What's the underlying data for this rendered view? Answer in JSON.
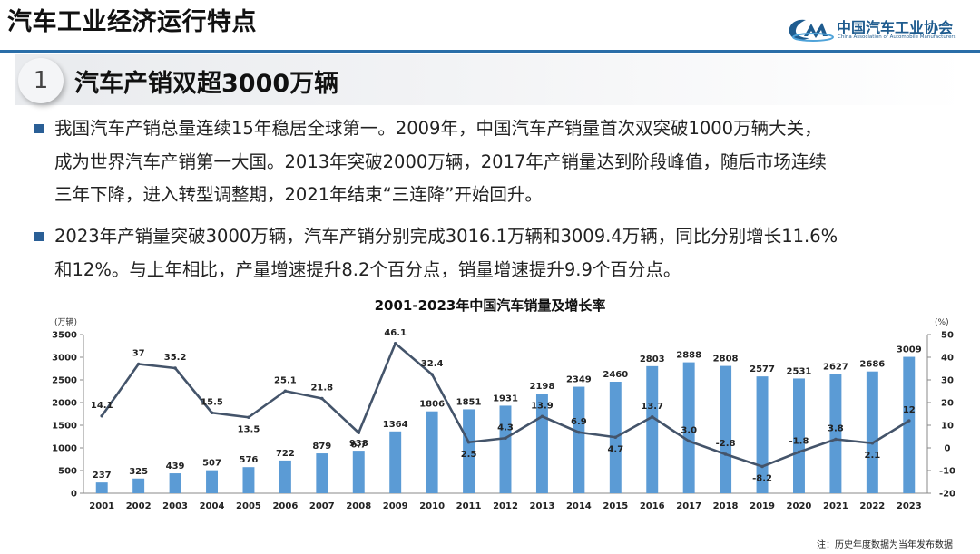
{
  "header": {
    "title": "汽车工业经济运行特点",
    "logo_cn": "中国汽车工业协会",
    "logo_en": "China Association of Automobile Manufacturers",
    "accent_color": "#2a6ea8"
  },
  "section": {
    "number": "1",
    "title": "汽车产销双超3000万辆"
  },
  "bullets": [
    {
      "lines": [
        "我国汽车产销总量连续15年稳居全球第一。2009年，中国汽车产销量首次双突破1000万辆大关，",
        "成为世界汽车产销第一大国。2013年突破2000万辆，2017年产销量达到阶段峰值，随后市场连续",
        "三年下降，进入转型调整期，2021年结束“三连降”开始回升。"
      ]
    },
    {
      "lines": [
        "2023年产销量突破3000万辆，汽车产销分别完成3016.1万辆和3009.4万辆，同比分别增长11.6%",
        "和12%。与上年相比，产量增速提升8.2个百分点，销量增速提升9.9个百分点。"
      ]
    }
  ],
  "chart_data": {
    "type": "bar",
    "title": "2001-2023年中国汽车销量及增长率",
    "categories": [
      "2001",
      "2002",
      "2003",
      "2004",
      "2005",
      "2006",
      "2007",
      "2008",
      "2009",
      "2010",
      "2011",
      "2012",
      "2013",
      "2014",
      "2015",
      "2016",
      "2017",
      "2018",
      "2019",
      "2020",
      "2021",
      "2022",
      "2023"
    ],
    "series": [
      {
        "name": "销量",
        "type": "bar",
        "axis": "left",
        "color": "#5b9bd5",
        "values": [
          237,
          325,
          439,
          507,
          576,
          722,
          879,
          938,
          1364,
          1806,
          1851,
          1931,
          2198,
          2349,
          2460,
          2803,
          2888,
          2808,
          2577,
          2531,
          2627,
          2686,
          3009
        ],
        "labels": [
          "237",
          "325",
          "439",
          "507",
          "576",
          "722",
          "879",
          "938",
          "1364",
          "1806",
          "1851",
          "1931",
          "2198",
          "2349",
          "2460",
          "2803",
          "2888",
          "2808",
          "2577",
          "2531",
          "2627",
          "2686",
          "3009"
        ]
      },
      {
        "name": "增长率",
        "type": "line",
        "axis": "right",
        "color": "#44546a",
        "values": [
          14.1,
          37,
          35.2,
          15.5,
          13.5,
          25.1,
          21.8,
          6.7,
          46.1,
          32.4,
          2.5,
          4.3,
          13.9,
          6.9,
          4.7,
          13.7,
          3.0,
          -2.8,
          -8.2,
          -1.8,
          3.8,
          2.1,
          12
        ],
        "labels": [
          "14.1",
          "37",
          "35.2",
          "15.5",
          "13.5",
          "25.1",
          "21.8",
          "6.7",
          "46.1",
          "32.4",
          "2.5",
          "4.3",
          "13.9",
          "6.9",
          "4.7",
          "13.7",
          "3.0",
          "-2.8",
          "-8.2",
          "-1.8",
          "3.8",
          "2.1",
          "12"
        ]
      }
    ],
    "y_left": {
      "unit_label": "(万辆)",
      "range": [
        0,
        3500
      ],
      "ticks": [
        "0",
        "500",
        "1000",
        "1500",
        "2000",
        "2500",
        "3000",
        "3500"
      ]
    },
    "y_right": {
      "unit_label": "(%)",
      "range": [
        -20,
        50
      ],
      "ticks": [
        "-20",
        "-10",
        "0",
        "10",
        "20",
        "30",
        "40",
        "50"
      ]
    },
    "legend": "none",
    "grid": false,
    "note": "注：历史年度数据为当年发布数据"
  }
}
